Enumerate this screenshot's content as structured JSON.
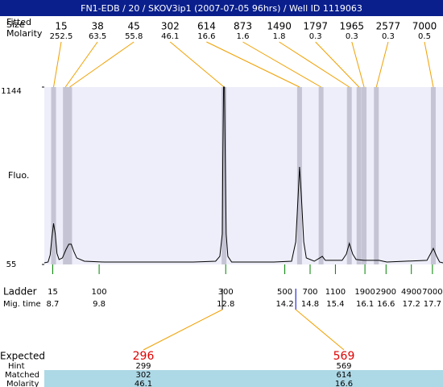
{
  "title": "FN1-EDB / 20 / SKOV3ip1 (2007-07-05 96hrs) / Well ID 1119063",
  "size_labels": [
    "Fitted",
    "Size"
  ],
  "molarity_label": "Molarity",
  "chart_data": {
    "type": "line",
    "y_label": "Fluo.",
    "xlim": [
      8.5,
      17.95
    ],
    "ylim": [
      55,
      1144
    ],
    "yticks": [
      55,
      1144
    ],
    "color": "#000000",
    "background": "#eeeefa",
    "x": [
      8.5,
      8.59,
      8.64,
      8.68,
      8.72,
      8.76,
      8.8,
      8.85,
      8.93,
      9.01,
      9.08,
      9.14,
      9.2,
      9.27,
      9.45,
      9.92,
      10.88,
      12.03,
      12.56,
      12.66,
      12.72,
      12.73,
      12.75,
      12.77,
      12.79,
      12.81,
      12.85,
      12.94,
      13.94,
      14.36,
      14.46,
      14.52,
      14.55,
      14.59,
      14.65,
      14.71,
      14.9,
      15.03,
      15.09,
      15.16,
      15.56,
      15.66,
      15.73,
      15.81,
      15.89,
      16.08,
      16.43,
      16.62,
      17.57,
      17.65,
      17.72,
      17.8,
      17.87,
      17.95
    ],
    "values": [
      65,
      70,
      114,
      218,
      307,
      243,
      124,
      85,
      95,
      144,
      179,
      179,
      134,
      95,
      75,
      70,
      70,
      70,
      75,
      105,
      243,
      689,
      1144,
      1144,
      689,
      243,
      105,
      70,
      70,
      75,
      194,
      491,
      654,
      491,
      194,
      95,
      75,
      95,
      105,
      80,
      80,
      119,
      184,
      119,
      85,
      80,
      80,
      70,
      80,
      119,
      154,
      105,
      70,
      65
    ],
    "peaks": {
      "sizes": [
        15,
        38,
        45,
        302,
        614,
        873,
        1490,
        1797,
        1965,
        2577,
        7000
      ],
      "molarities": [
        252.5,
        63.5,
        55.8,
        46.1,
        16.6,
        1.6,
        1.8,
        0.3,
        0.3,
        0.3,
        0.5
      ],
      "times": [
        8.72,
        9.0,
        9.1,
        12.76,
        14.55,
        15.06,
        15.73,
        15.96,
        16.08,
        16.37,
        17.72
      ]
    },
    "ladder": {
      "label": "Ladder",
      "time_label": "Mig. time",
      "sizes": [
        15,
        100,
        300,
        500,
        700,
        1100,
        1900,
        2900,
        4900,
        7000
      ],
      "times": [
        8.7,
        9.8,
        12.8,
        14.2,
        14.8,
        15.4,
        16.1,
        16.6,
        17.2,
        17.7
      ]
    }
  },
  "expected_table": {
    "row_labels": [
      "Expected",
      "Hint",
      "Matched",
      "Molarity"
    ],
    "columns": [
      {
        "expected": 296,
        "hint": 299,
        "matched": 302,
        "molarity": 46.1,
        "time": 12.72
      },
      {
        "expected": 569,
        "hint": 569,
        "matched": 614,
        "molarity": 16.6,
        "time": 14.46
      }
    ]
  }
}
